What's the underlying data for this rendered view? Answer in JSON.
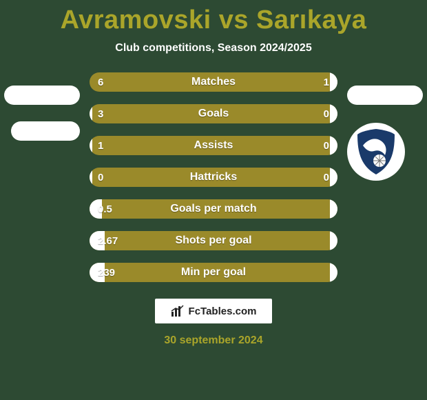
{
  "background_color": "#2d4a33",
  "title": {
    "text": "Avramovski vs Sarıkaya",
    "color": "#aaa52a"
  },
  "subtitle": {
    "text": "Club competitions, Season 2024/2025",
    "color": "#ffffff"
  },
  "bars": {
    "fill_color": "#9a8a2a",
    "empty_color": "#ffffff",
    "text_color": "#ffffff",
    "rows": [
      {
        "label": "Matches",
        "left": "6",
        "right": "1",
        "left_pct": 0,
        "right_pct": 3
      },
      {
        "label": "Goals",
        "left": "3",
        "right": "0",
        "left_pct": 1,
        "right_pct": 3
      },
      {
        "label": "Assists",
        "left": "1",
        "right": "0",
        "left_pct": 1,
        "right_pct": 3
      },
      {
        "label": "Hattricks",
        "left": "0",
        "right": "0",
        "left_pct": 1,
        "right_pct": 3
      },
      {
        "label": "Goals per match",
        "left": "0.5",
        "right": "",
        "left_pct": 5,
        "right_pct": 3
      },
      {
        "label": "Shots per goal",
        "left": "2.67",
        "right": "",
        "left_pct": 6,
        "right_pct": 3
      },
      {
        "label": "Min per goal",
        "left": "239",
        "right": "",
        "left_pct": 6,
        "right_pct": 3
      }
    ]
  },
  "attribution": {
    "text": "FcTables.com"
  },
  "footer_date": {
    "text": "30 september 2024",
    "color": "#aaa52a"
  },
  "badge": {
    "shield_bg": "#1a3a6a",
    "eagle_color": "#ffffff",
    "ball_color": "#ffffff"
  }
}
